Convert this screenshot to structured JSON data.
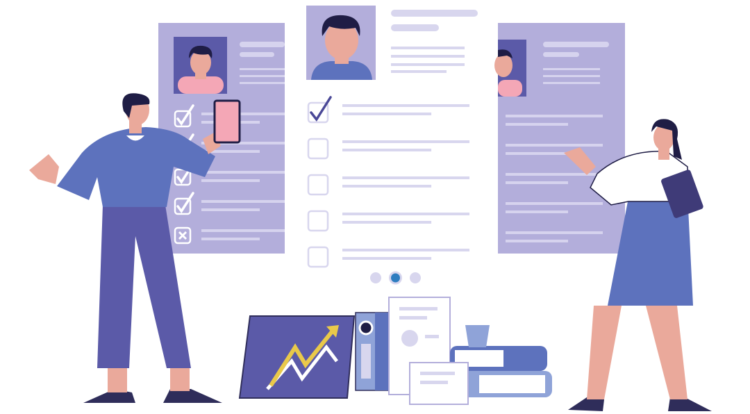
{
  "colors": {
    "card_lavender": "#b3aedb",
    "card_white": "#ffffff",
    "photo_dark": "#5b5aa8",
    "line_light": "#d8d6ee",
    "line_on_lavender": "#d6d3ee",
    "check_mark": "#4a4897",
    "shirt_blue": "#5d72bd",
    "pants_purple": "#5b5aa8",
    "skin": "#eaa99b",
    "hair": "#1f1d45",
    "accent_pink": "#f4a7b6",
    "arrow_yellow": "#e9c94a",
    "dot_active": "#2e7dc0",
    "dot_inactive": "#d8d6ee"
  },
  "carousel": {
    "count": 3,
    "active_index": 1
  },
  "left_card_checks": [
    "checked",
    "checked",
    "checked",
    "checked",
    "crossed"
  ],
  "center_card_checks": [
    "checked",
    "empty",
    "empty",
    "empty",
    "empty"
  ]
}
